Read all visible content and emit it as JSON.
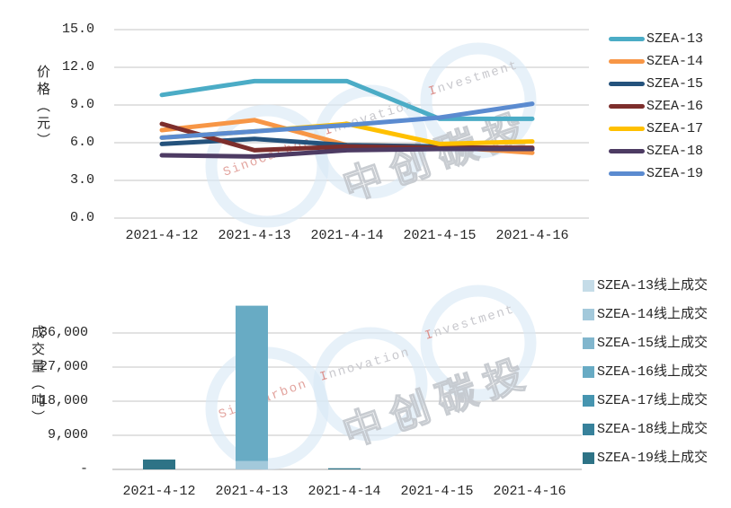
{
  "page": {
    "background": "#ffffff"
  },
  "watermark": {
    "brand_latin_1": "SinoCarbon",
    "brand_latin_2": "Innovation",
    "brand_latin_3": "Investment",
    "brand_cjk": "中创碳投",
    "ring_color": "#d9e8f6",
    "latin_gray": "#c8c8cd",
    "latin_red": "#dd8f8a",
    "cjk_gray": "#c3c7cd"
  },
  "chart_data": [
    {
      "id": "price-line-chart",
      "type": "line",
      "title": "",
      "ylabel": "价格（元）",
      "xlabel": "",
      "ylim": [
        0,
        15
      ],
      "grid": "horizontal",
      "legend_position": "right",
      "categories": [
        "2021-4-12",
        "2021-4-13",
        "2021-4-14",
        "2021-4-15",
        "2021-4-16"
      ],
      "y_ticks": [
        {
          "label": "15.0",
          "value": 15
        },
        {
          "label": "12.0",
          "value": 12
        },
        {
          "label": "9.0",
          "value": 9
        },
        {
          "label": "6.0",
          "value": 6
        },
        {
          "label": "3.0",
          "value": 3
        },
        {
          "label": "0.0",
          "value": 0
        }
      ],
      "series": [
        {
          "name": "SZEA-13",
          "color": "#4BACC6",
          "values": [
            9.8,
            10.9,
            10.9,
            7.9,
            7.9
          ]
        },
        {
          "name": "SZEA-14",
          "color": "#F79646",
          "values": [
            7.0,
            7.8,
            5.8,
            5.7,
            5.2
          ]
        },
        {
          "name": "SZEA-15",
          "color": "#24527C",
          "values": [
            5.9,
            6.3,
            5.8,
            5.7,
            5.5
          ]
        },
        {
          "name": "SZEA-16",
          "color": "#7D2E2C",
          "values": [
            7.5,
            5.4,
            5.7,
            5.6,
            5.6
          ]
        },
        {
          "name": "SZEA-17",
          "color": "#FFC000",
          "values": [
            6.4,
            6.9,
            7.5,
            5.9,
            6.1
          ]
        },
        {
          "name": "SZEA-18",
          "color": "#4D3B63",
          "values": [
            5.0,
            4.9,
            5.4,
            5.5,
            5.5
          ]
        },
        {
          "name": "SZEA-19",
          "color": "#5B8BD0",
          "values": [
            6.4,
            6.9,
            7.4,
            8.0,
            9.1
          ]
        }
      ]
    },
    {
      "id": "volume-bar-chart",
      "type": "bar",
      "stacked": true,
      "title": "",
      "ylabel": "成交量（吨）",
      "xlabel": "",
      "ylim": [
        0,
        45000
      ],
      "grid": "horizontal",
      "legend_position": "right",
      "categories": [
        "2021-4-12",
        "2021-4-13",
        "2021-4-14",
        "2021-4-15",
        "2021-4-16"
      ],
      "y_ticks": [
        {
          "label": "36,000",
          "value": 36000
        },
        {
          "label": "27,000",
          "value": 27000
        },
        {
          "label": "18,000",
          "value": 18000
        },
        {
          "label": "9,000",
          "value": 9000
        },
        {
          "label": "-",
          "value": 0
        }
      ],
      "series": [
        {
          "name": "SZEA-13线上成交",
          "color": "#C5DCE8",
          "values": [
            0,
            0,
            0,
            0,
            0
          ]
        },
        {
          "name": "SZEA-14线上成交",
          "color": "#A3C9DB",
          "values": [
            0,
            2200,
            0,
            0,
            0
          ]
        },
        {
          "name": "SZEA-15线上成交",
          "color": "#81B6CD",
          "values": [
            0,
            0,
            0,
            0,
            0
          ]
        },
        {
          "name": "SZEA-16线上成交",
          "color": "#68ABC4",
          "values": [
            0,
            41000,
            0,
            0,
            0
          ]
        },
        {
          "name": "SZEA-17线上成交",
          "color": "#4695B0",
          "values": [
            0,
            0,
            0,
            0,
            0
          ]
        },
        {
          "name": "SZEA-18线上成交",
          "color": "#37819B",
          "values": [
            0,
            0,
            0,
            0,
            0
          ]
        },
        {
          "name": "SZEA-19线上成交",
          "color": "#2E7386",
          "values": [
            2600,
            0,
            300,
            0,
            0
          ]
        }
      ]
    }
  ]
}
